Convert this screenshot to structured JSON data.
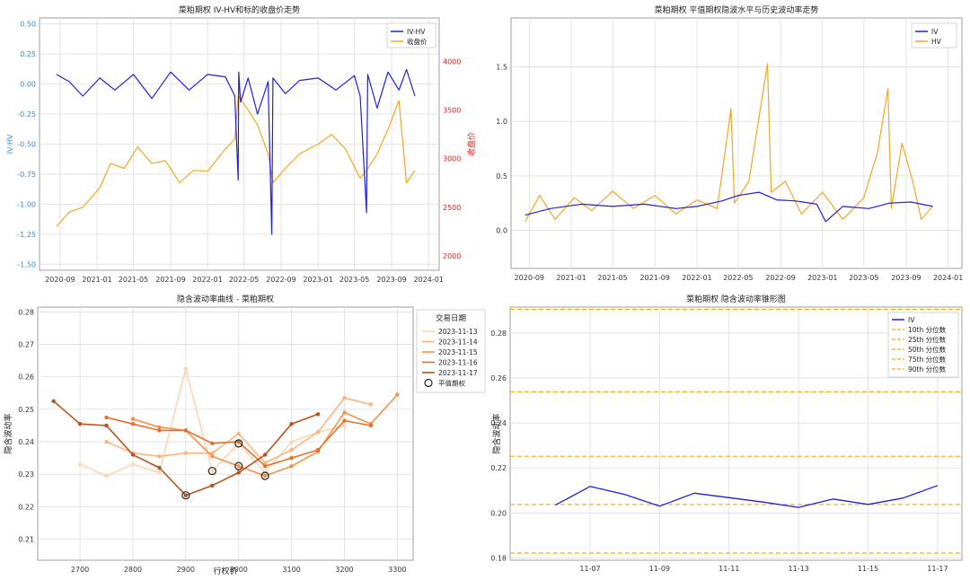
{
  "chart_data": [
    {
      "type": "line",
      "title": "菜粕期权 IV-HV和标的收盘价走势",
      "ylabel": "IV-HV",
      "y2label": "收盘价",
      "ylim": [
        -1.55,
        0.55
      ],
      "y2lim": [
        1850,
        4450
      ],
      "ytick_labels": [
        "0.50",
        "0.25",
        "0.00",
        "-0.25",
        "-0.50",
        "-0.75",
        "-1.00",
        "-1.25",
        "-1.50"
      ],
      "y2tick_labels": [
        "4000",
        "3500",
        "3000",
        "2500",
        "2000"
      ],
      "xtick_labels": [
        "2020-09",
        "2021-01",
        "2021-05",
        "2021-09",
        "2022-01",
        "2022-05",
        "2022-09",
        "2023-01",
        "2023-05",
        "2023-09",
        "2024-01"
      ],
      "grid": true,
      "legend_position": "top-right",
      "colors": {
        "iv_hv": "#1f1fdc",
        "close": "#f5a623",
        "left_axis": "#3a86c8",
        "right_axis": "#e02020"
      },
      "series": [
        {
          "name": "IV-HV",
          "axis": "left",
          "x": [
            "2020-08-20",
            "2020-10-01",
            "2020-11-15",
            "2021-01-10",
            "2021-03-01",
            "2021-05-01",
            "2021-07-01",
            "2021-09-01",
            "2021-11-01",
            "2022-01-01",
            "2022-03-01",
            "2022-04-01",
            "2022-04-12",
            "2022-04-14",
            "2022-04-20",
            "2022-05-15",
            "2022-06-15",
            "2022-07-20",
            "2022-08-01",
            "2022-08-05",
            "2022-09-15",
            "2022-11-01",
            "2023-01-01",
            "2023-03-01",
            "2023-05-01",
            "2023-05-20",
            "2023-06-10",
            "2023-06-14",
            "2023-07-15",
            "2023-08-20",
            "2023-09-25",
            "2023-10-20",
            "2023-11-17"
          ],
          "values": [
            0.08,
            0.02,
            -0.1,
            0.05,
            -0.05,
            0.08,
            -0.12,
            0.1,
            -0.05,
            0.08,
            0.06,
            -0.1,
            -0.8,
            0.1,
            -0.15,
            0.05,
            -0.25,
            0.02,
            -1.25,
            0.05,
            -0.08,
            0.03,
            0.05,
            -0.05,
            0.07,
            -0.1,
            -1.07,
            0.08,
            -0.2,
            0.1,
            -0.05,
            0.12,
            -0.1
          ]
        },
        {
          "name": "收盘价",
          "axis": "right",
          "x": [
            "2020-08-20",
            "2020-10-01",
            "2020-11-15",
            "2021-01-10",
            "2021-02-15",
            "2021-04-01",
            "2021-05-15",
            "2021-07-01",
            "2021-08-15",
            "2021-10-01",
            "2021-11-15",
            "2022-01-01",
            "2022-03-01",
            "2022-04-01",
            "2022-04-12",
            "2022-05-15",
            "2022-06-15",
            "2022-07-20",
            "2022-08-05",
            "2022-09-15",
            "2022-11-01",
            "2023-01-01",
            "2023-02-15",
            "2023-04-01",
            "2023-05-20",
            "2023-06-15",
            "2023-07-15",
            "2023-08-20",
            "2023-09-25",
            "2023-10-20",
            "2023-11-17"
          ],
          "values": [
            2300,
            2450,
            2500,
            2700,
            2950,
            2900,
            3120,
            2950,
            2980,
            2750,
            2880,
            2870,
            3100,
            3200,
            3650,
            3500,
            3350,
            3050,
            2750,
            2900,
            3050,
            3150,
            3250,
            3100,
            2800,
            2900,
            3050,
            3300,
            3600,
            2750,
            2880
          ]
        }
      ]
    },
    {
      "type": "line",
      "title": "菜粕期权 平值期权隐波水平与历史波动率走势",
      "ylim": [
        -0.35,
        1.95
      ],
      "ytick_labels": [
        "1.5",
        "1.0",
        "0.5",
        "0.0"
      ],
      "xtick_labels": [
        "2020-09",
        "2021-01",
        "2021-05",
        "2021-09",
        "2022-01",
        "2022-05",
        "2022-09",
        "2023-01",
        "2023-05",
        "2023-09",
        "2024-01"
      ],
      "grid": true,
      "legend_position": "top-right",
      "colors": {
        "iv": "#1f1fdc",
        "hv": "#f5a623"
      },
      "series": [
        {
          "name": "IV",
          "x": [
            "2020-08-20",
            "2020-11-01",
            "2021-02-01",
            "2021-05-01",
            "2021-08-01",
            "2021-11-01",
            "2022-01-01",
            "2022-03-15",
            "2022-05-01",
            "2022-07-01",
            "2022-08-20",
            "2022-10-15",
            "2022-12-15",
            "2023-01-10",
            "2023-03-01",
            "2023-05-15",
            "2023-07-15",
            "2023-09-15",
            "2023-11-17"
          ],
          "values": [
            0.14,
            0.2,
            0.24,
            0.22,
            0.24,
            0.2,
            0.22,
            0.27,
            0.32,
            0.35,
            0.28,
            0.27,
            0.24,
            0.08,
            0.22,
            0.2,
            0.25,
            0.26,
            0.22
          ]
        },
        {
          "name": "HV",
          "x": [
            "2020-08-20",
            "2020-10-01",
            "2020-11-15",
            "2021-01-10",
            "2021-03-01",
            "2021-05-01",
            "2021-07-01",
            "2021-09-01",
            "2021-11-01",
            "2022-01-01",
            "2022-03-01",
            "2022-04-10",
            "2022-04-20",
            "2022-06-01",
            "2022-07-25",
            "2022-08-05",
            "2022-09-15",
            "2022-11-01",
            "2023-01-01",
            "2023-03-01",
            "2023-05-01",
            "2023-06-10",
            "2023-07-10",
            "2023-07-20",
            "2023-08-20",
            "2023-09-20",
            "2023-10-15",
            "2023-11-17"
          ],
          "values": [
            0.08,
            0.32,
            0.1,
            0.3,
            0.18,
            0.36,
            0.2,
            0.32,
            0.15,
            0.28,
            0.2,
            1.12,
            0.25,
            0.45,
            1.53,
            0.35,
            0.45,
            0.15,
            0.35,
            0.1,
            0.3,
            0.72,
            1.3,
            0.2,
            0.8,
            0.45,
            0.1,
            0.22
          ]
        }
      ]
    },
    {
      "type": "line",
      "title": "隐含波动率曲线 - 菜粕期权",
      "xlabel": "行权价",
      "ylabel": "隐含波动率",
      "xlim": [
        2620,
        3330
      ],
      "ylim": [
        0.2035,
        0.2815
      ],
      "xtick_labels": [
        "2700",
        "2800",
        "2900",
        "3000",
        "3100",
        "3200",
        "3300"
      ],
      "ytick_labels": [
        "0.28",
        "0.27",
        "0.26",
        "0.25",
        "0.24",
        "0.23",
        "0.22",
        "0.21"
      ],
      "grid": true,
      "legend_position": "top-right",
      "legend_title": "交易日期",
      "atm_legend_label": "平值期权",
      "series": [
        {
          "name": "2023-11-13",
          "color": "#fdd5b1",
          "x": [
            2700,
            2750,
            2800,
            2850,
            2900,
            2950,
            3000,
            3050,
            3100,
            3150,
            3200
          ],
          "values": [
            0.233,
            0.2295,
            0.233,
            0.2305,
            0.2625,
            0.231,
            0.2395,
            0.2305,
            0.24,
            0.243,
            0.245
          ]
        },
        {
          "name": "2023-11-14",
          "color": "#fbb47e",
          "x": [
            2750,
            2800,
            2850,
            2900,
            2950,
            3000,
            3050,
            3100,
            3150,
            3200,
            3250
          ],
          "values": [
            0.24,
            0.2365,
            0.2355,
            0.2365,
            0.2365,
            0.2425,
            0.2335,
            0.2375,
            0.243,
            0.2535,
            0.2515
          ]
        },
        {
          "name": "2023-11-15",
          "color": "#f4914a",
          "x": [
            2800,
            2850,
            2900,
            2950,
            3000,
            3050,
            3100,
            3150,
            3200,
            3250,
            3300
          ],
          "values": [
            0.247,
            0.2445,
            0.2435,
            0.2355,
            0.2325,
            0.2295,
            0.2325,
            0.237,
            0.249,
            0.2455,
            0.2545
          ]
        },
        {
          "name": "2023-11-16",
          "color": "#e2712e",
          "x": [
            2750,
            2800,
            2850,
            2900,
            2950,
            3000,
            3050,
            3100,
            3150,
            3200,
            3250
          ],
          "values": [
            0.2475,
            0.2455,
            0.2435,
            0.2435,
            0.2395,
            0.24,
            0.2325,
            0.235,
            0.2375,
            0.2465,
            0.245
          ]
        },
        {
          "name": "2023-11-17",
          "color": "#b8521c",
          "x": [
            2650,
            2700,
            2750,
            2800,
            2850,
            2900,
            2950,
            3000,
            3050,
            3100,
            3150
          ],
          "values": [
            0.2525,
            0.2455,
            0.245,
            0.236,
            0.232,
            0.2235,
            0.2265,
            0.2305,
            0.236,
            0.2455,
            0.2485
          ]
        }
      ],
      "atm_points": [
        {
          "x": 2950,
          "y": 0.231
        },
        {
          "x": 3000,
          "y": 0.2395
        },
        {
          "x": 3000,
          "y": 0.2325
        },
        {
          "x": 3050,
          "y": 0.2295
        },
        {
          "x": 2900,
          "y": 0.2235
        }
      ]
    },
    {
      "type": "line",
      "title": "菜粕期权 隐含波动率锥形图",
      "ylabel": "隐含波动率",
      "ylim": [
        0.179,
        0.2915
      ],
      "ytick_labels": [
        "0.28",
        "0.26",
        "0.24",
        "0.22",
        "0.20",
        "0.18"
      ],
      "xtick_labels": [
        "11-07",
        "11-09",
        "11-11",
        "11-13",
        "11-15",
        "11-17"
      ],
      "grid": true,
      "legend_position": "top-right",
      "series": [
        {
          "name": "IV",
          "color": "#1f1fdc",
          "x": [
            6,
            7,
            8,
            9,
            10,
            11,
            12,
            13,
            14,
            15,
            16,
            17
          ],
          "values": [
            0.2035,
            0.2118,
            0.2082,
            0.203,
            0.2088,
            0.2068,
            0.2048,
            0.2025,
            0.2062,
            0.2038,
            0.2066,
            0.2122
          ]
        }
      ],
      "percentiles": [
        {
          "name": "10th 分位数",
          "value": 0.1822
        },
        {
          "name": "25th 分位数",
          "value": 0.2038
        },
        {
          "name": "50th 分位数",
          "value": 0.2252
        },
        {
          "name": "75th 分位数",
          "value": 0.2538
        },
        {
          "name": "90th 分位数",
          "value": 0.2905
        }
      ],
      "percentile_color": "#f5a623"
    }
  ]
}
